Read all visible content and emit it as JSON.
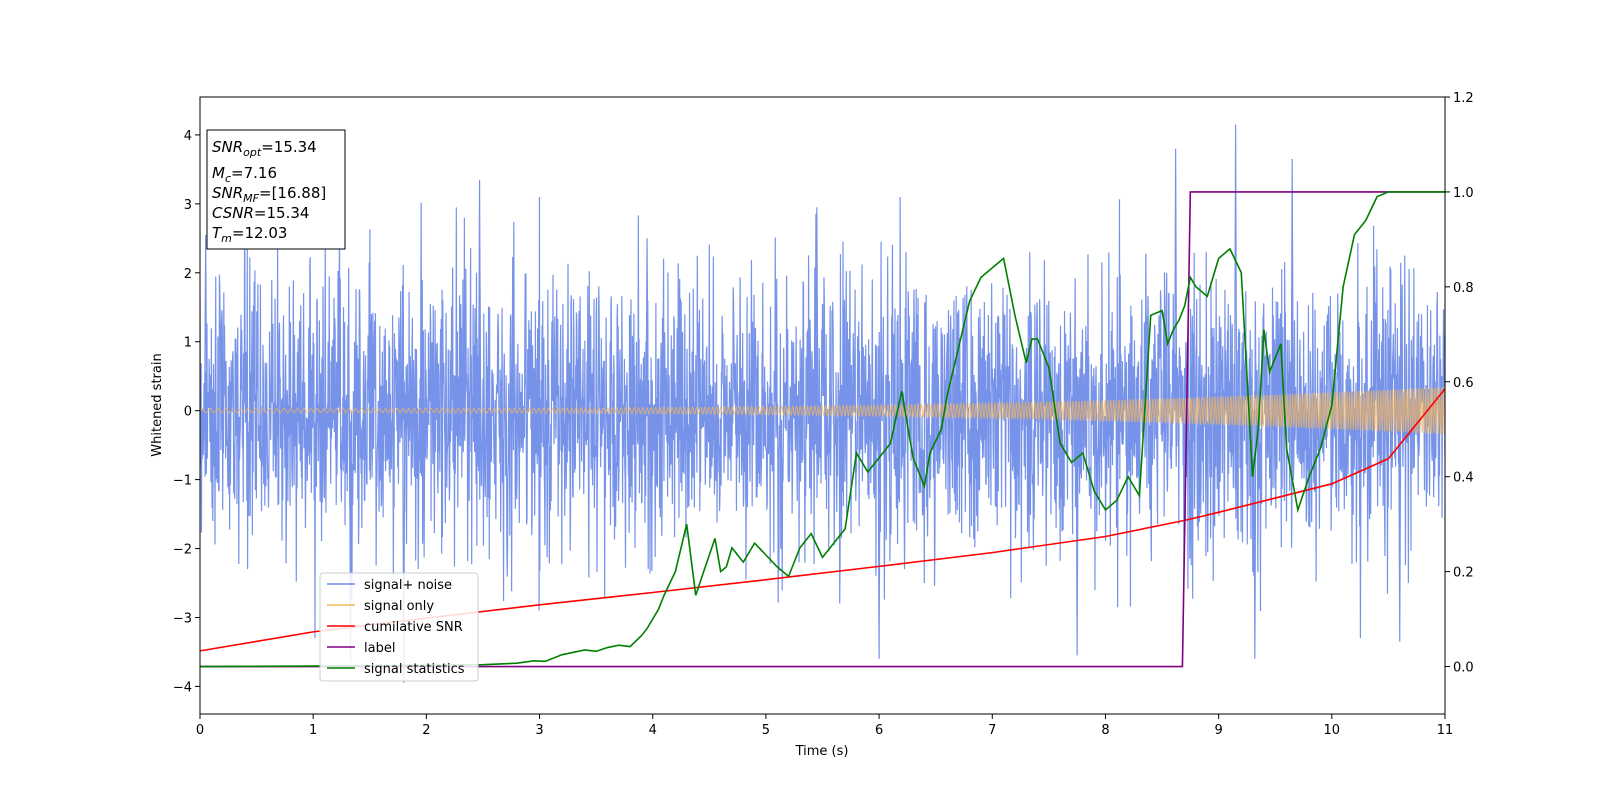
{
  "chart_data": {
    "type": "line",
    "xlabel": "Time (s)",
    "ylabel": "Whitened strain",
    "xlim": [
      0,
      11
    ],
    "ylim_left": [
      -4.4,
      4.55
    ],
    "ylim_right": [
      -0.1,
      1.2
    ],
    "x_ticks": [
      "0",
      "1",
      "2",
      "3",
      "4",
      "5",
      "6",
      "7",
      "8",
      "9",
      "10",
      "11"
    ],
    "y_ticks_left": [
      "−4",
      "−3",
      "−2",
      "−1",
      "0",
      "1",
      "2",
      "3",
      "4"
    ],
    "y_ticks_right": [
      "0.0",
      "0.2",
      "0.4",
      "0.6",
      "0.8",
      "1.0",
      "1.2"
    ],
    "grid": false,
    "legend_position": "lower-left",
    "series": [
      {
        "name": "signal+ noise",
        "axis": "left",
        "color": "#4169e1",
        "kind": "noise",
        "typical_amplitude": 1.6,
        "peak_values": [
          [
            0.05,
            2.55
          ],
          [
            1.33,
            -3.65
          ],
          [
            1.8,
            -3.95
          ],
          [
            2.47,
            3.35
          ],
          [
            3.95,
            2.5
          ],
          [
            5.45,
            2.95
          ],
          [
            6.0,
            -3.6
          ],
          [
            7.75,
            -3.55
          ],
          [
            8.62,
            3.8
          ],
          [
            9.15,
            4.15
          ],
          [
            9.32,
            -3.6
          ],
          [
            9.65,
            3.65
          ],
          [
            10.6,
            -3.35
          ]
        ]
      },
      {
        "name": "signal only",
        "axis": "left",
        "color": "#f5b65b",
        "kind": "chirp",
        "amplitude_start": 0.03,
        "amplitude_end": 0.35
      },
      {
        "name": "cumilative SNR",
        "axis": "right",
        "color": "#ff0000",
        "x": [
          0,
          1,
          2,
          3,
          4,
          5,
          6,
          7,
          8,
          8.7,
          9,
          10,
          10.5,
          11
        ],
        "y": [
          0.033,
          0.073,
          0.102,
          0.13,
          0.156,
          0.183,
          0.211,
          0.24,
          0.274,
          0.308,
          0.325,
          0.385,
          0.438,
          0.585
        ]
      },
      {
        "name": "label",
        "axis": "right",
        "color": "#800080",
        "x": [
          0,
          8.68,
          8.75,
          11
        ],
        "y": [
          0,
          0,
          1,
          1
        ]
      },
      {
        "name": "signal statistics",
        "axis": "right",
        "color": "#008000",
        "x": [
          0,
          1,
          2,
          2.5,
          2.8,
          2.95,
          3.05,
          3.2,
          3.3,
          3.4,
          3.5,
          3.6,
          3.7,
          3.8,
          3.9,
          3.95,
          4.05,
          4.1,
          4.2,
          4.3,
          4.38,
          4.45,
          4.55,
          4.6,
          4.65,
          4.7,
          4.8,
          4.9,
          5.0,
          5.1,
          5.2,
          5.3,
          5.4,
          5.5,
          5.6,
          5.7,
          5.8,
          5.9,
          6.0,
          6.1,
          6.2,
          6.3,
          6.35,
          6.4,
          6.45,
          6.55,
          6.6,
          6.7,
          6.8,
          6.9,
          7.0,
          7.1,
          7.2,
          7.3,
          7.35,
          7.4,
          7.5,
          7.6,
          7.7,
          7.8,
          7.9,
          8.0,
          8.1,
          8.2,
          8.3,
          8.4,
          8.5,
          8.55,
          8.6,
          8.65,
          8.7,
          8.75,
          8.8,
          8.9,
          9.0,
          9.1,
          9.2,
          9.3,
          9.35,
          9.4,
          9.45,
          9.55,
          9.6,
          9.7,
          9.8,
          9.9,
          10.0,
          10.1,
          10.2,
          10.3,
          10.4,
          10.5,
          10.6,
          11.0
        ],
        "y": [
          0,
          0.001,
          0.003,
          0.004,
          0.007,
          0.012,
          0.011,
          0.025,
          0.03,
          0.035,
          0.032,
          0.04,
          0.045,
          0.042,
          0.065,
          0.08,
          0.12,
          0.15,
          0.2,
          0.3,
          0.15,
          0.2,
          0.27,
          0.2,
          0.21,
          0.25,
          0.22,
          0.26,
          0.235,
          0.21,
          0.19,
          0.25,
          0.28,
          0.23,
          0.26,
          0.29,
          0.45,
          0.41,
          0.44,
          0.47,
          0.58,
          0.44,
          0.41,
          0.38,
          0.45,
          0.5,
          0.57,
          0.67,
          0.77,
          0.82,
          0.84,
          0.86,
          0.74,
          0.64,
          0.69,
          0.69,
          0.63,
          0.47,
          0.43,
          0.45,
          0.37,
          0.33,
          0.35,
          0.4,
          0.36,
          0.74,
          0.75,
          0.68,
          0.71,
          0.73,
          0.76,
          0.82,
          0.8,
          0.78,
          0.86,
          0.88,
          0.83,
          0.4,
          0.5,
          0.71,
          0.62,
          0.68,
          0.46,
          0.33,
          0.4,
          0.46,
          0.55,
          0.8,
          0.91,
          0.94,
          0.99,
          1.0,
          1.0,
          1.0
        ]
      }
    ]
  },
  "info_box": {
    "snr_opt_var": "SNR",
    "snr_opt_sub": "opt",
    "snr_opt_val": "=15.34",
    "mc_var": "M",
    "mc_sub": "c",
    "mc_val": "=7.16",
    "snr_mf_var": "SNR",
    "snr_mf_sub": "MF",
    "snr_mf_val": "=[16.88]",
    "csnr_var": "CSNR",
    "csnr_val": "=15.34",
    "tm_var": "T",
    "tm_sub": "m",
    "tm_val": "=12.03"
  },
  "colors": {
    "frame": "#000000",
    "background": "#ffffff"
  }
}
